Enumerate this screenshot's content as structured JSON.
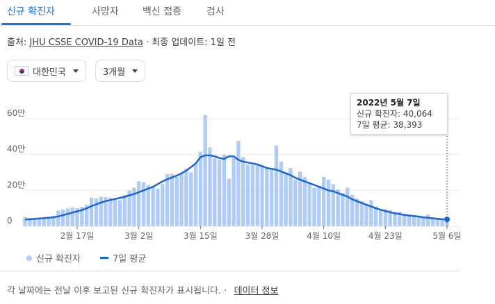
{
  "tabs": [
    {
      "label": "신규 확진자",
      "active": true
    },
    {
      "label": "사망자",
      "active": false
    },
    {
      "label": "백신 접종",
      "active": false
    },
    {
      "label": "검사",
      "active": false
    }
  ],
  "source": {
    "prefix": "출처:",
    "link": "JHU CSSE COVID-19 Data",
    "suffix": " · 최종 업데이트: 1일 전"
  },
  "filters": {
    "region": {
      "flag_icon": "south-korea-flag-icon",
      "label": "대한민국"
    },
    "period": {
      "label": "3개월"
    }
  },
  "tooltip": {
    "date": "2022년 5월 7일",
    "cases": "신규 확진자: 40,064",
    "avg": "7일 평균: 38,393"
  },
  "legend": {
    "bars": "신규 확진자",
    "line": "7일 평균"
  },
  "footer": {
    "text": "각 날짜에는 전날 이후 보고된 신규 확진자가 표시됩니다.",
    "sep": "·",
    "link": "데이터 정보"
  },
  "colors": {
    "bar": "#aecbfa",
    "line": "#1967d2",
    "grid": "#e8eaed",
    "active_tab": "#1a73e8"
  },
  "chart_data": {
    "type": "bar",
    "ylim": [
      0,
      700000
    ],
    "yticks": [
      0,
      200000,
      400000,
      600000
    ],
    "ytick_labels": [
      "0",
      "20만",
      "40만",
      "60만"
    ],
    "x_tick_labels": [
      "2월 17일",
      "3월 2일",
      "3월 15일",
      "3월 28일",
      "4월 10일",
      "4월 23일",
      "5월 6일"
    ],
    "x_tick_indices": [
      11,
      24,
      37,
      50,
      63,
      76,
      89
    ],
    "series": [
      {
        "name": "신규 확진자",
        "type": "bar",
        "values": [
          50000,
          46000,
          45000,
          49000,
          52000,
          54000,
          59000,
          88000,
          93000,
          99000,
          105000,
          100000,
          108000,
          120000,
          160000,
          155000,
          165000,
          162000,
          158000,
          150000,
          145000,
          175000,
          198000,
          215000,
          250000,
          245000,
          230000,
          220000,
          210000,
          235000,
          290000,
          290000,
          275000,
          295000,
          320000,
          300000,
          350000,
          415000,
          620000,
          440000,
          380000,
          370000,
          400000,
          265000,
          380000,
          475000,
          385000,
          345000,
          340000,
          345000,
          340000,
          330000,
          315000,
          450000,
          360000,
          300000,
          325000,
          260000,
          305000,
          275000,
          245000,
          215000,
          225000,
          275000,
          260000,
          235000,
          205000,
          185000,
          215000,
          175000,
          155000,
          140000,
          125000,
          145000,
          110000,
          95000,
          95000,
          90000,
          80000,
          82000,
          70000,
          62000,
          60000,
          58000,
          56000,
          65000,
          50000,
          48000,
          42000,
          40064
        ],
        "color": "#aecbfa"
      },
      {
        "name": "7일 평균",
        "type": "line",
        "values": [
          38000,
          39000,
          41000,
          43000,
          45000,
          47000,
          50000,
          55000,
          62000,
          69000,
          76000,
          83000,
          90000,
          100000,
          112000,
          122000,
          132000,
          140000,
          146000,
          152000,
          158000,
          164000,
          172000,
          180000,
          190000,
          200000,
          210000,
          220000,
          235000,
          250000,
          262000,
          272000,
          282000,
          295000,
          310000,
          330000,
          350000,
          385000,
          395000,
          395000,
          390000,
          380000,
          375000,
          390000,
          390000,
          370000,
          360000,
          355000,
          350000,
          345000,
          335000,
          325000,
          320000,
          315000,
          305000,
          295000,
          285000,
          270000,
          260000,
          250000,
          240000,
          230000,
          220000,
          210000,
          200000,
          195000,
          185000,
          175000,
          165000,
          150000,
          140000,
          130000,
          120000,
          110000,
          100000,
          92000,
          85000,
          78000,
          72000,
          68000,
          63000,
          60000,
          57000,
          54000,
          50000,
          47000,
          44000,
          41000,
          39000,
          38393
        ],
        "color": "#1967d2"
      }
    ]
  }
}
